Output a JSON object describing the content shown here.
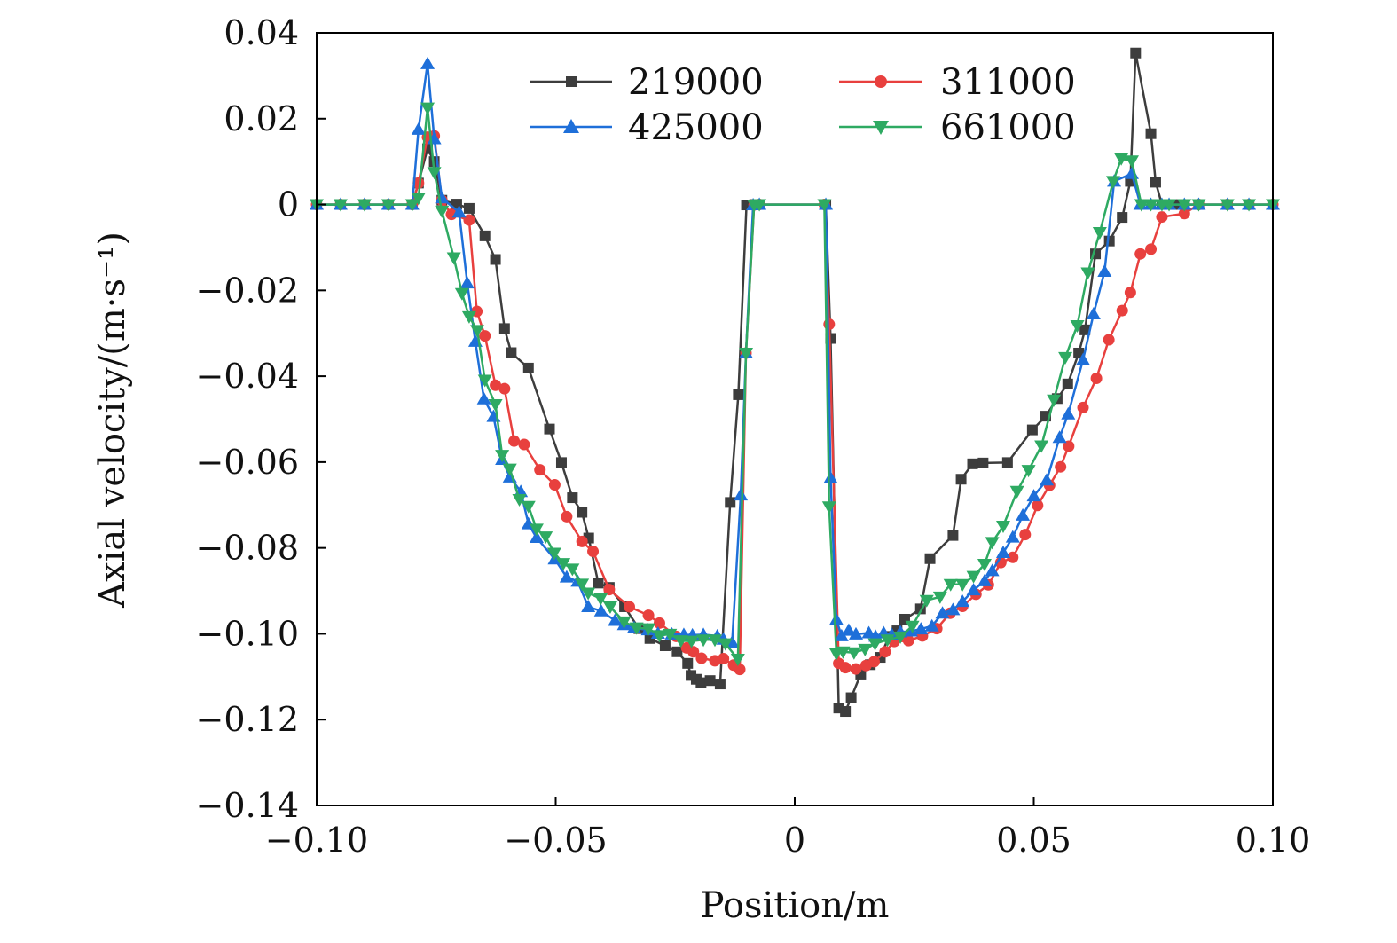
{
  "chart_data": {
    "type": "line",
    "title": "",
    "xlabel": "Position/m",
    "ylabel": "Axial velocity/(m·s⁻¹)",
    "xlim": [
      -0.1,
      0.1
    ],
    "ylim": [
      -0.14,
      0.04
    ],
    "xticks": [
      -0.1,
      -0.05,
      0,
      0.05,
      0.1
    ],
    "xtick_labels": [
      "−0.10",
      "−0.05",
      "0",
      "0.05",
      "0.10"
    ],
    "yticks": [
      -0.14,
      -0.12,
      -0.1,
      -0.08,
      -0.06,
      -0.04,
      -0.02,
      0,
      0.02,
      0.04
    ],
    "ytick_labels": [
      "−0.14",
      "−0.12",
      "−0.10",
      "−0.08",
      "−0.06",
      "−0.04",
      "−0.02",
      "0",
      "0.02",
      "0.04"
    ],
    "legend_position": "top-center, two columns",
    "grid": false,
    "series": [
      {
        "name": "219000",
        "color": "#3d3d3d",
        "marker": "square",
        "x": [
          -0.1,
          -0.095,
          -0.09,
          -0.085,
          -0.08,
          -0.0787,
          -0.0768,
          -0.0754,
          -0.0738,
          -0.0707,
          -0.0681,
          -0.0648,
          -0.0626,
          -0.0607,
          -0.0593,
          -0.0557,
          -0.0513,
          -0.0488,
          -0.0465,
          -0.0445,
          -0.0431,
          -0.0411,
          -0.0388,
          -0.0356,
          -0.0326,
          -0.0303,
          -0.0271,
          -0.0246,
          -0.0224,
          -0.0217,
          -0.0206,
          -0.0196,
          -0.0177,
          -0.0156,
          -0.0135,
          -0.0118,
          -0.0101,
          -0.0084,
          -0.0074,
          0.0065,
          0.0075,
          0.0092,
          0.0106,
          0.0118,
          0.0138,
          0.0158,
          0.0179,
          0.0197,
          0.0214,
          0.023,
          0.0263,
          0.0283,
          0.0331,
          0.0348,
          0.0372,
          0.0394,
          0.0445,
          0.0497,
          0.0525,
          0.0549,
          0.0571,
          0.0594,
          0.0607,
          0.0629,
          0.0658,
          0.0685,
          0.0702,
          0.0713,
          0.0745,
          0.0755,
          0.0768,
          0.0794,
          0.0815,
          0.0845,
          0.0905,
          0.095,
          0.1
        ],
        "y": [
          0,
          0,
          0,
          0,
          0,
          0.005,
          0.013,
          0.01,
          0.001,
          0.0001,
          -0.0009,
          -0.0073,
          -0.0128,
          -0.0289,
          -0.0345,
          -0.0381,
          -0.0523,
          -0.0601,
          -0.0683,
          -0.0717,
          -0.0777,
          -0.0882,
          -0.0892,
          -0.0937,
          -0.0988,
          -0.1011,
          -0.1028,
          -0.1042,
          -0.1069,
          -0.1097,
          -0.1106,
          -0.1114,
          -0.1109,
          -0.1117,
          -0.0694,
          -0.0443,
          -0.0001,
          0,
          0,
          0,
          -0.0312,
          -0.1173,
          -0.1181,
          -0.1149,
          -0.1094,
          -0.1072,
          -0.1055,
          -0.1006,
          -0.0993,
          -0.0966,
          -0.0942,
          -0.0825,
          -0.0771,
          -0.064,
          -0.0604,
          -0.0602,
          -0.0601,
          -0.0525,
          -0.0493,
          -0.0452,
          -0.0418,
          -0.0346,
          -0.0292,
          -0.0115,
          -0.0085,
          -0.003,
          0.0054,
          0.0353,
          0.0165,
          0.0052,
          0,
          0,
          0,
          0,
          0,
          0,
          0
        ]
      },
      {
        "name": "311000",
        "color": "#e8403e",
        "marker": "circle",
        "x": [
          -0.1,
          -0.095,
          -0.09,
          -0.085,
          -0.08,
          -0.0787,
          -0.0768,
          -0.0754,
          -0.0738,
          -0.0718,
          -0.0681,
          -0.0665,
          -0.0648,
          -0.0626,
          -0.0607,
          -0.0587,
          -0.0566,
          -0.0533,
          -0.0502,
          -0.0477,
          -0.0445,
          -0.0422,
          -0.0388,
          -0.0346,
          -0.0306,
          -0.0283,
          -0.0248,
          -0.0226,
          -0.0212,
          -0.0195,
          -0.0167,
          -0.0149,
          -0.0128,
          -0.0115,
          -0.0102,
          -0.0085,
          -0.0074,
          0.0062,
          0.0072,
          0.0092,
          0.0106,
          0.0128,
          0.0149,
          0.0166,
          0.0189,
          0.0208,
          0.0238,
          0.0267,
          0.0297,
          0.0325,
          0.0351,
          0.0379,
          0.0405,
          0.0431,
          0.0456,
          0.0482,
          0.0508,
          0.0533,
          0.0556,
          0.0573,
          0.0603,
          0.0631,
          0.0657,
          0.0685,
          0.0702,
          0.0723,
          0.0745,
          0.0768,
          0.0815,
          0.0845,
          0.0905,
          0.095,
          0.1
        ],
        "y": [
          0,
          0,
          0,
          0,
          0,
          0.005,
          0.0157,
          0.016,
          0.001,
          -0.0023,
          -0.0036,
          -0.0249,
          -0.0306,
          -0.0421,
          -0.0429,
          -0.0551,
          -0.0559,
          -0.0618,
          -0.0653,
          -0.0727,
          -0.0785,
          -0.0808,
          -0.0897,
          -0.0937,
          -0.0957,
          -0.0975,
          -0.1006,
          -0.1033,
          -0.1042,
          -0.1057,
          -0.1063,
          -0.1058,
          -0.1073,
          -0.1083,
          -0.0346,
          -0.0001,
          0,
          0,
          -0.0279,
          -0.1069,
          -0.1079,
          -0.1082,
          -0.1074,
          -0.1065,
          -0.1042,
          -0.1018,
          -0.1016,
          -0.1005,
          -0.0988,
          -0.0952,
          -0.0936,
          -0.0908,
          -0.0886,
          -0.0834,
          -0.0822,
          -0.0769,
          -0.0701,
          -0.0654,
          -0.0611,
          -0.0563,
          -0.0473,
          -0.0405,
          -0.0315,
          -0.0247,
          -0.0205,
          -0.0115,
          -0.0104,
          -0.0029,
          -0.0021,
          0,
          0,
          0,
          0
        ]
      },
      {
        "name": "425000",
        "color": "#1e6fd9",
        "marker": "triangle-up",
        "x": [
          -0.1,
          -0.095,
          -0.09,
          -0.085,
          -0.08,
          -0.0787,
          -0.0768,
          -0.0754,
          -0.0738,
          -0.0702,
          -0.0685,
          -0.0668,
          -0.065,
          -0.063,
          -0.0612,
          -0.0596,
          -0.0573,
          -0.0557,
          -0.054,
          -0.0502,
          -0.0477,
          -0.0454,
          -0.0432,
          -0.0405,
          -0.0376,
          -0.0357,
          -0.0336,
          -0.0307,
          -0.0286,
          -0.0257,
          -0.0232,
          -0.0214,
          -0.0191,
          -0.0162,
          -0.0149,
          -0.0131,
          -0.0113,
          -0.0102,
          -0.0087,
          -0.0074,
          0.0065,
          0.0075,
          0.0087,
          0.0098,
          0.0113,
          0.0128,
          0.0155,
          0.0169,
          0.0186,
          0.0203,
          0.0221,
          0.0243,
          0.0264,
          0.0287,
          0.0309,
          0.0331,
          0.0351,
          0.0374,
          0.0397,
          0.0413,
          0.0436,
          0.0456,
          0.0477,
          0.05,
          0.0527,
          0.0554,
          0.0572,
          0.0603,
          0.0625,
          0.0648,
          0.0668,
          0.0705,
          0.0723,
          0.0745,
          0.0768,
          0.0783,
          0.0815,
          0.0845,
          0.0905,
          0.095,
          0.1
        ],
        "y": [
          0,
          0,
          0,
          0,
          0,
          0.0175,
          0.0328,
          0.0153,
          0.0015,
          -0.0018,
          -0.0183,
          -0.0319,
          -0.0453,
          -0.0494,
          -0.0594,
          -0.0635,
          -0.0669,
          -0.0744,
          -0.0776,
          -0.0826,
          -0.0868,
          -0.0878,
          -0.0937,
          -0.0947,
          -0.0969,
          -0.0979,
          -0.0986,
          -0.0991,
          -0.0999,
          -0.1001,
          -0.1002,
          -0.1003,
          -0.1002,
          -0.1005,
          -0.1013,
          -0.102,
          -0.0677,
          -0.0346,
          -0.0001,
          0,
          0,
          -0.0637,
          -0.0967,
          -0.1005,
          -0.0992,
          -0.1001,
          -0.0998,
          -0.1006,
          -0.0998,
          -0.1002,
          -0.0996,
          -0.0994,
          -0.0989,
          -0.0982,
          -0.0952,
          -0.0944,
          -0.0925,
          -0.0898,
          -0.0877,
          -0.0853,
          -0.0811,
          -0.0775,
          -0.0724,
          -0.0679,
          -0.0642,
          -0.0543,
          -0.0488,
          -0.0362,
          -0.0255,
          -0.0156,
          0.0054,
          0.0072,
          0,
          0,
          0,
          0,
          0,
          0,
          0,
          0,
          0
        ]
      },
      {
        "name": "661000",
        "color": "#2eaa62",
        "marker": "triangle-down",
        "x": [
          -0.1,
          -0.095,
          -0.09,
          -0.085,
          -0.08,
          -0.0787,
          -0.0768,
          -0.0754,
          -0.0738,
          -0.0713,
          -0.0696,
          -0.0681,
          -0.0664,
          -0.0648,
          -0.0626,
          -0.0612,
          -0.0596,
          -0.0576,
          -0.0557,
          -0.054,
          -0.0521,
          -0.0503,
          -0.0484,
          -0.0465,
          -0.0445,
          -0.0432,
          -0.0406,
          -0.0386,
          -0.0357,
          -0.0331,
          -0.0306,
          -0.0283,
          -0.0261,
          -0.0238,
          -0.0216,
          -0.0191,
          -0.0167,
          -0.0145,
          -0.0119,
          -0.0102,
          -0.0085,
          -0.0074,
          0.0062,
          0.0072,
          0.0087,
          0.0101,
          0.0124,
          0.0147,
          0.0168,
          0.0194,
          0.0221,
          0.0246,
          0.0276,
          0.0304,
          0.0326,
          0.0351,
          0.0374,
          0.0397,
          0.0413,
          0.0436,
          0.0465,
          0.0489,
          0.0516,
          0.0542,
          0.0566,
          0.0591,
          0.0613,
          0.0638,
          0.0666,
          0.0683,
          0.0705,
          0.0725,
          0.0745,
          0.0768,
          0.0783,
          0.0815,
          0.0845,
          0.0905,
          0.095,
          0.1
        ],
        "y": [
          0,
          0,
          0,
          0,
          0,
          0.0015,
          0.0225,
          0.0075,
          -0.0015,
          -0.0124,
          -0.0207,
          -0.0261,
          -0.0293,
          -0.0409,
          -0.0466,
          -0.0584,
          -0.0616,
          -0.0687,
          -0.0703,
          -0.0756,
          -0.0774,
          -0.0812,
          -0.0836,
          -0.0849,
          -0.0884,
          -0.0905,
          -0.0918,
          -0.0937,
          -0.0972,
          -0.0986,
          -0.0988,
          -0.1004,
          -0.1001,
          -0.1016,
          -0.1017,
          -0.1014,
          -0.1014,
          -0.1023,
          -0.1059,
          -0.0346,
          -0.0001,
          0,
          0,
          -0.0704,
          -0.1046,
          -0.1042,
          -0.1044,
          -0.1036,
          -0.1023,
          -0.1014,
          -0.1007,
          -0.0982,
          -0.0922,
          -0.0914,
          -0.0885,
          -0.0885,
          -0.0866,
          -0.0838,
          -0.0787,
          -0.0749,
          -0.0668,
          -0.0619,
          -0.0562,
          -0.0455,
          -0.0356,
          -0.0282,
          -0.0159,
          -0.0065,
          0.0054,
          0.0107,
          0.0102,
          0,
          0,
          0,
          0,
          0,
          0,
          0,
          0,
          0
        ]
      }
    ]
  }
}
